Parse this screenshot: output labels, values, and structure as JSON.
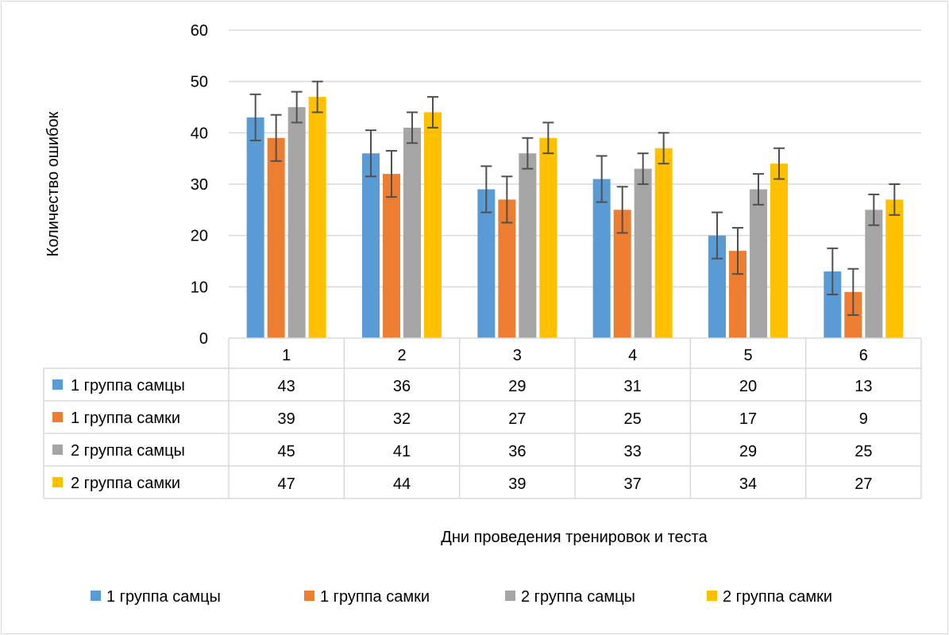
{
  "chart_data": {
    "type": "bar",
    "title": "",
    "xlabel": "Дни проведения тренировок и теста",
    "ylabel": "Количество ошибок",
    "ylim": [
      0,
      60
    ],
    "yticks": [
      0,
      10,
      20,
      30,
      40,
      50,
      60
    ],
    "grid": true,
    "legend_position": "bottom",
    "data_table": true,
    "categories": [
      "1",
      "2",
      "3",
      "4",
      "5",
      "6"
    ],
    "series": [
      {
        "name": "1 группа самцы",
        "color": "#5b9bd5",
        "values": [
          43,
          36,
          29,
          31,
          20,
          13
        ],
        "error": [
          4.5,
          4.5,
          4.5,
          4.5,
          4.5,
          4.5
        ]
      },
      {
        "name": "1 группа самки",
        "color": "#ed7d31",
        "values": [
          39,
          32,
          27,
          25,
          17,
          9
        ],
        "error": [
          4.5,
          4.5,
          4.5,
          4.5,
          4.5,
          4.5
        ]
      },
      {
        "name": "2 группа самцы",
        "color": "#a5a5a5",
        "values": [
          45,
          41,
          36,
          33,
          29,
          25
        ],
        "error": [
          3,
          3,
          3,
          3,
          3,
          3
        ]
      },
      {
        "name": "2 группа самки",
        "color": "#ffc000",
        "values": [
          47,
          44,
          39,
          37,
          34,
          27
        ],
        "error": [
          3,
          3,
          3,
          3,
          3,
          3
        ]
      }
    ]
  }
}
